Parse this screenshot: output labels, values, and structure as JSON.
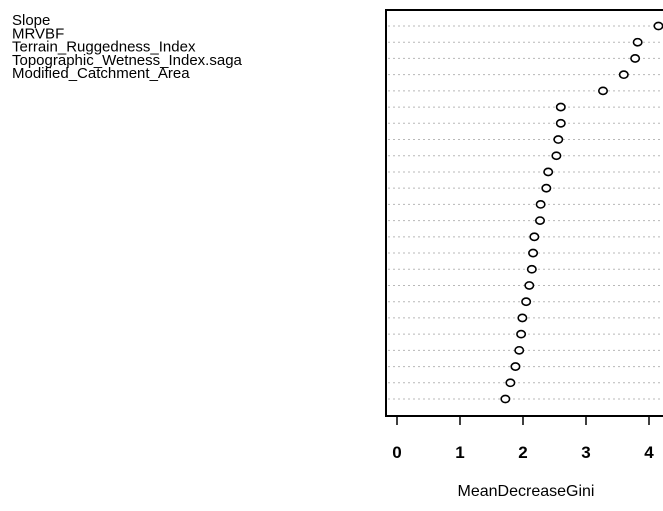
{
  "chart_data": {
    "type": "scatter",
    "title": "",
    "xlabel": "MeanDecreaseGini",
    "ylabel": "",
    "xlim": [
      -0.1,
      4.2
    ],
    "xticks": [
      0,
      1,
      2,
      3,
      4
    ],
    "grid": true,
    "point_style": "open-circle",
    "labels": [
      "Slope",
      "MRVBF",
      "Terrain_Ruggedness_Index",
      "Topographic_Wetness_Index.saga",
      "Modified_Catchment_Area"
    ],
    "values": [
      4.15,
      3.82,
      3.78,
      3.6,
      3.27,
      2.6,
      2.6,
      2.56,
      2.53,
      2.4,
      2.37,
      2.28,
      2.27,
      2.18,
      2.16,
      2.14,
      2.1,
      2.05,
      1.99,
      1.97,
      1.94,
      1.88,
      1.8,
      1.72
    ]
  }
}
